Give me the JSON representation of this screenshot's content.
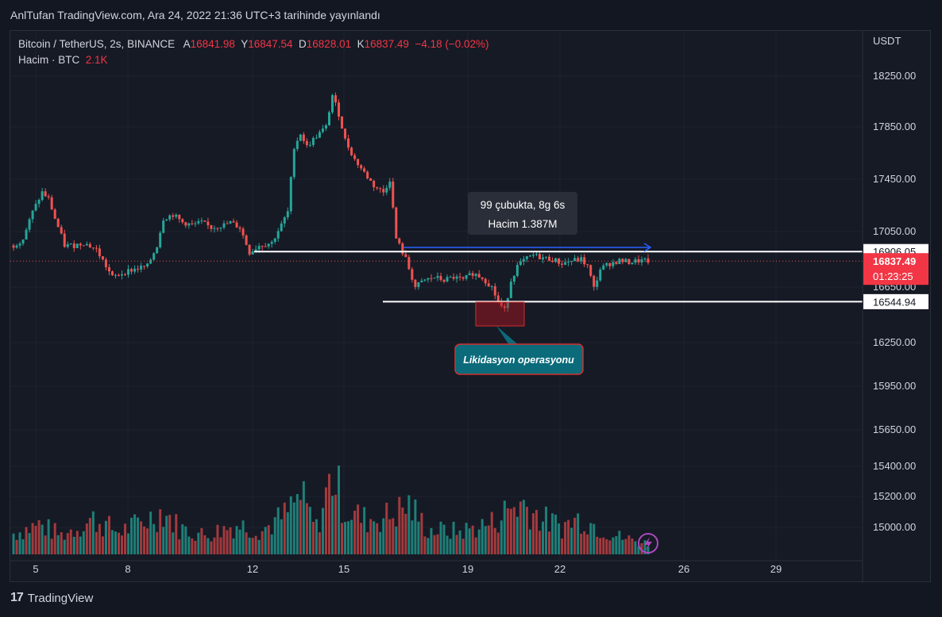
{
  "header": {
    "published": "AnlTufan TradingView.com, Ara 24, 2022 21:36 UTC+3 tarihinde yayınlandı"
  },
  "legend": {
    "symbol": "Bitcoin / TetherUS, 2s, BINANCE",
    "open_label": "A",
    "open": "16841.98",
    "high_label": "Y",
    "high": "16847.54",
    "low_label": "D",
    "low": "16828.01",
    "close_label": "K",
    "close": "16837.49",
    "change": "−4.18 (−0.02%)",
    "volume_label": "Hacim · BTC",
    "volume": "2.1K"
  },
  "footer": {
    "brand": "TradingView",
    "brand_mark": "17"
  },
  "colors": {
    "up": "#26a69a",
    "down": "#ef5350",
    "up_vol": "#1e7f78",
    "down_vol": "#a33a3d",
    "bg": "#161a25",
    "grid": "#1f2330",
    "text": "#d1d4dc"
  },
  "chart_data": {
    "type": "candlestick",
    "currency": "USDT",
    "price_ticks": [
      "18250.00",
      "17850.00",
      "17450.00",
      "17050.00",
      "16650.00",
      "16250.00",
      "15950.00",
      "15650.00",
      "15400.00",
      "15200.00",
      "15000.00"
    ],
    "x_ticks": [
      "5",
      "8",
      "12",
      "15",
      "19",
      "22",
      "26",
      "29"
    ],
    "support_level": "16544.94",
    "resistance_level": "16906.05",
    "last_price": "16837.49",
    "countdown": "01:23:25",
    "measure_box": {
      "line1": "99 çubukta, 8g 6s",
      "line2": "Hacim 1.387M"
    },
    "annotation": "Likidasyon operasyonu",
    "price_path": [
      [
        0,
        16950
      ],
      [
        3,
        17000
      ],
      [
        6,
        17200
      ],
      [
        9,
        17350
      ],
      [
        11,
        17300
      ],
      [
        13,
        17150
      ],
      [
        16,
        16950
      ],
      [
        19,
        16950
      ],
      [
        22,
        16970
      ],
      [
        26,
        16920
      ],
      [
        31,
        16720
      ],
      [
        35,
        16760
      ],
      [
        38,
        16780
      ],
      [
        42,
        16800
      ],
      [
        45,
        16950
      ],
      [
        47,
        17150
      ],
      [
        50,
        17180
      ],
      [
        53,
        17120
      ],
      [
        56,
        17100
      ],
      [
        59,
        17120
      ],
      [
        62,
        17080
      ],
      [
        66,
        17100
      ],
      [
        68,
        17120
      ],
      [
        71,
        17080
      ],
      [
        74,
        16900
      ],
      [
        77,
        16950
      ],
      [
        81,
        16970
      ],
      [
        84,
        17100
      ],
      [
        86,
        17200
      ],
      [
        88,
        17700
      ],
      [
        90,
        17800
      ],
      [
        92,
        17700
      ],
      [
        95,
        17780
      ],
      [
        98,
        17850
      ],
      [
        100,
        18100
      ],
      [
        102,
        17950
      ],
      [
        104,
        17750
      ],
      [
        107,
        17600
      ],
      [
        110,
        17500
      ],
      [
        113,
        17400
      ],
      [
        116,
        17350
      ],
      [
        118,
        17450
      ],
      [
        120,
        17000
      ],
      [
        123,
        16850
      ],
      [
        126,
        16650
      ],
      [
        129,
        16700
      ],
      [
        132,
        16720
      ],
      [
        135,
        16700
      ],
      [
        138,
        16720
      ],
      [
        141,
        16700
      ],
      [
        144,
        16750
      ],
      [
        147,
        16720
      ],
      [
        150,
        16650
      ],
      [
        152,
        16540
      ],
      [
        154,
        16480
      ],
      [
        156,
        16700
      ],
      [
        158,
        16800
      ],
      [
        160,
        16840
      ],
      [
        163,
        16880
      ],
      [
        166,
        16860
      ],
      [
        169,
        16850
      ],
      [
        172,
        16820
      ],
      [
        175,
        16840
      ],
      [
        178,
        16850
      ],
      [
        180,
        16800
      ],
      [
        182,
        16640
      ],
      [
        184,
        16780
      ],
      [
        187,
        16820
      ],
      [
        190,
        16840
      ],
      [
        193,
        16830
      ],
      [
        196,
        16840
      ],
      [
        199,
        16837
      ]
    ],
    "volume_path": [
      [
        0,
        1.2
      ],
      [
        8,
        1.7
      ],
      [
        15,
        1.1
      ],
      [
        25,
        2.0
      ],
      [
        33,
        1.3
      ],
      [
        40,
        1.8
      ],
      [
        47,
        2.5
      ],
      [
        52,
        1.5
      ],
      [
        60,
        1.1
      ],
      [
        70,
        1.7
      ],
      [
        78,
        1.4
      ],
      [
        85,
        2.2
      ],
      [
        90,
        3.3
      ],
      [
        95,
        1.5
      ],
      [
        100,
        4.6
      ],
      [
        104,
        2.6
      ],
      [
        110,
        2.0
      ],
      [
        118,
        2.2
      ],
      [
        124,
        2.8
      ],
      [
        130,
        1.4
      ],
      [
        140,
        1.3
      ],
      [
        150,
        1.8
      ],
      [
        156,
        2.7
      ],
      [
        160,
        2.9
      ],
      [
        166,
        2.0
      ],
      [
        172,
        1.6
      ],
      [
        178,
        2.1
      ],
      [
        184,
        1.5
      ],
      [
        190,
        1.0
      ],
      [
        199,
        0.6
      ]
    ]
  }
}
